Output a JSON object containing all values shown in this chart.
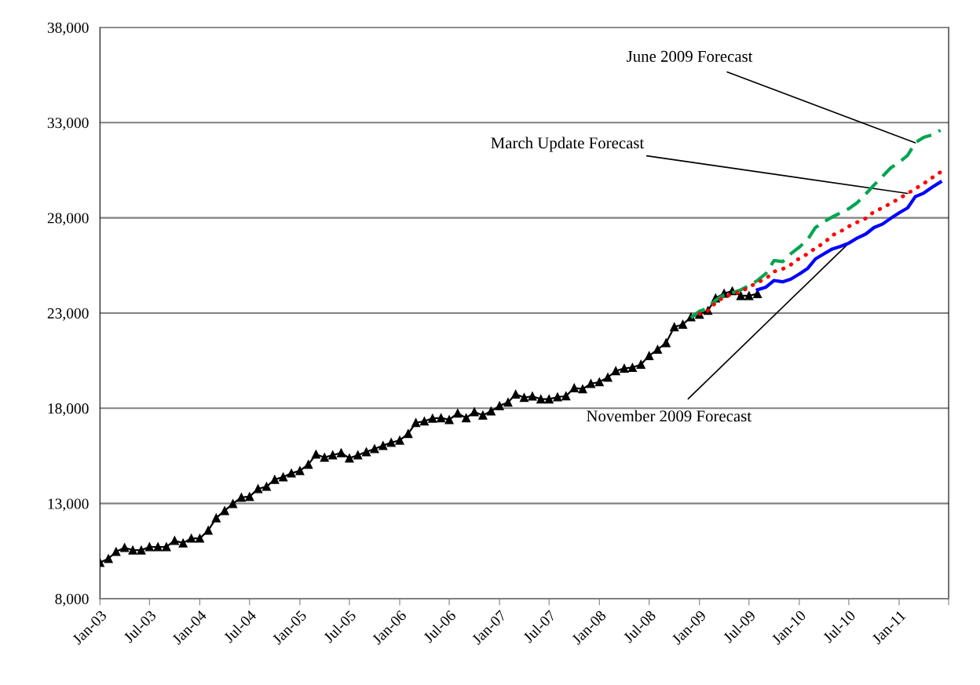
{
  "chart_data": {
    "type": "line",
    "xlim": [
      "2003-01",
      "2011-07"
    ],
    "xticks": [
      {
        "value": "2003-01",
        "label": "Jan-03"
      },
      {
        "value": "2003-07",
        "label": "Jul-03"
      },
      {
        "value": "2004-01",
        "label": "Jan-04"
      },
      {
        "value": "2004-07",
        "label": "Jul-04"
      },
      {
        "value": "2005-01",
        "label": "Jan-05"
      },
      {
        "value": "2005-07",
        "label": "Jul-05"
      },
      {
        "value": "2006-01",
        "label": "Jan-06"
      },
      {
        "value": "2006-07",
        "label": "Jul-06"
      },
      {
        "value": "2007-01",
        "label": "Jan-07"
      },
      {
        "value": "2007-07",
        "label": "Jul-07"
      },
      {
        "value": "2008-01",
        "label": "Jan-08"
      },
      {
        "value": "2008-07",
        "label": "Jul-08"
      },
      {
        "value": "2009-01",
        "label": "Jan-09"
      },
      {
        "value": "2009-07",
        "label": "Jul-09"
      },
      {
        "value": "2010-01",
        "label": "Jan-10"
      },
      {
        "value": "2010-07",
        "label": "Jul-10"
      },
      {
        "value": "2011-01",
        "label": "Jan-11"
      },
      {
        "value": "2011-07",
        "label": null
      }
    ],
    "ylim": [
      8000,
      38000
    ],
    "yticks": [
      {
        "value": 8000,
        "label": "8,000"
      },
      {
        "value": 13000,
        "label": "13,000"
      },
      {
        "value": 18000,
        "label": "18,000"
      },
      {
        "value": 23000,
        "label": "23,000"
      },
      {
        "value": 28000,
        "label": "28,000"
      },
      {
        "value": 33000,
        "label": "33,000"
      },
      {
        "value": 38000,
        "label": "38,000"
      }
    ],
    "grid": "y",
    "annotations": [
      {
        "text": "June 2009 Forecast",
        "x": "2011-03",
        "y": 31940
      },
      {
        "text": "March Update Forecast",
        "x": "2011-02",
        "y": 29280
      },
      {
        "text": "November 2009 Forecast",
        "x": "2010-07",
        "y": 26670
      }
    ],
    "series": [
      {
        "color": "#000000",
        "marker": "triangle",
        "line_style": "solid",
        "x": [
          "2003-01",
          "2003-02",
          "2003-03",
          "2003-04",
          "2003-05",
          "2003-06",
          "2003-07",
          "2003-08",
          "2003-09",
          "2003-10",
          "2003-11",
          "2003-12",
          "2004-01",
          "2004-02",
          "2004-03",
          "2004-04",
          "2004-05",
          "2004-06",
          "2004-07",
          "2004-08",
          "2004-09",
          "2004-10",
          "2004-11",
          "2004-12",
          "2005-01",
          "2005-02",
          "2005-03",
          "2005-04",
          "2005-05",
          "2005-06",
          "2005-07",
          "2005-08",
          "2005-09",
          "2005-10",
          "2005-11",
          "2005-12",
          "2006-01",
          "2006-02",
          "2006-03",
          "2006-04",
          "2006-05",
          "2006-06",
          "2006-07",
          "2006-08",
          "2006-09",
          "2006-10",
          "2006-11",
          "2006-12",
          "2007-01",
          "2007-02",
          "2007-03",
          "2007-04",
          "2007-05",
          "2007-06",
          "2007-07",
          "2007-08",
          "2007-09",
          "2007-10",
          "2007-11",
          "2007-12",
          "2008-01",
          "2008-02",
          "2008-03",
          "2008-04",
          "2008-05",
          "2008-06",
          "2008-07",
          "2008-08",
          "2008-09",
          "2008-10",
          "2008-11",
          "2008-12",
          "2009-01",
          "2009-02",
          "2009-03",
          "2009-04",
          "2009-05",
          "2009-06",
          "2009-07",
          "2009-08"
        ],
        "values": [
          9900,
          10100,
          10470,
          10680,
          10550,
          10550,
          10720,
          10720,
          10720,
          11050,
          10920,
          11170,
          11170,
          11590,
          12240,
          12620,
          12990,
          13320,
          13360,
          13770,
          13890,
          14260,
          14390,
          14590,
          14720,
          15050,
          15580,
          15420,
          15540,
          15660,
          15380,
          15540,
          15710,
          15870,
          16040,
          16200,
          16320,
          16670,
          17240,
          17320,
          17470,
          17490,
          17400,
          17740,
          17490,
          17810,
          17630,
          17850,
          18130,
          18310,
          18740,
          18560,
          18630,
          18480,
          18480,
          18590,
          18640,
          19070,
          19010,
          19290,
          19380,
          19620,
          19960,
          20100,
          20140,
          20300,
          20760,
          21090,
          21440,
          22270,
          22400,
          22790,
          22930,
          23130,
          23780,
          24030,
          24160,
          23910,
          23910,
          24010
        ]
      },
      {
        "color": "#00a550",
        "marker": "none",
        "line_style": "dashed",
        "x": [
          "2008-12",
          "2009-01",
          "2009-02",
          "2009-03",
          "2009-04",
          "2009-05",
          "2009-06",
          "2009-07",
          "2009-08",
          "2009-09",
          "2009-10",
          "2009-11",
          "2009-12",
          "2010-01",
          "2010-02",
          "2010-03",
          "2010-04",
          "2010-05",
          "2010-06",
          "2010-07",
          "2010-08",
          "2010-09",
          "2010-10",
          "2010-11",
          "2010-12",
          "2011-01",
          "2011-02",
          "2011-03",
          "2011-04",
          "2011-05",
          "2011-06"
        ],
        "values": [
          22750,
          23090,
          23260,
          23680,
          23950,
          24060,
          24220,
          24440,
          24710,
          25080,
          25760,
          25700,
          26110,
          26460,
          26870,
          27490,
          27790,
          28040,
          28260,
          28480,
          28800,
          29250,
          29720,
          30170,
          30620,
          30910,
          31280,
          31940,
          32230,
          32350,
          32600
        ]
      },
      {
        "color": "#ff0000",
        "marker": "none",
        "line_style": "dotted",
        "x": [
          "2009-01",
          "2009-02",
          "2009-03",
          "2009-04",
          "2009-05",
          "2009-06",
          "2009-07",
          "2009-08",
          "2009-09",
          "2009-10",
          "2009-11",
          "2009-12",
          "2010-01",
          "2010-02",
          "2010-03",
          "2010-04",
          "2010-05",
          "2010-06",
          "2010-07",
          "2010-08",
          "2010-09",
          "2010-10",
          "2010-11",
          "2010-12",
          "2011-01",
          "2011-02",
          "2011-03",
          "2011-04",
          "2011-05",
          "2011-06"
        ],
        "values": [
          22960,
          23130,
          23540,
          23850,
          23990,
          24120,
          24360,
          24610,
          24810,
          25180,
          25310,
          25540,
          25870,
          26110,
          26420,
          26670,
          27080,
          27290,
          27550,
          27770,
          27970,
          28320,
          28520,
          28760,
          29010,
          29280,
          29530,
          29800,
          30100,
          30400
        ]
      },
      {
        "color": "#0000ff",
        "marker": "none",
        "line_style": "solid",
        "x": [
          "2009-08",
          "2009-09",
          "2009-10",
          "2009-11",
          "2009-12",
          "2010-01",
          "2010-02",
          "2010-03",
          "2010-04",
          "2010-05",
          "2010-06",
          "2010-07",
          "2010-08",
          "2010-09",
          "2010-10",
          "2010-11",
          "2010-12",
          "2011-01",
          "2011-02",
          "2011-03",
          "2011-04",
          "2011-05",
          "2011-06"
        ],
        "values": [
          24220,
          24360,
          24710,
          24640,
          24780,
          25050,
          25350,
          25840,
          26110,
          26360,
          26500,
          26670,
          26940,
          27150,
          27490,
          27670,
          27970,
          28260,
          28520,
          29110,
          29300,
          29600,
          29880
        ]
      }
    ]
  }
}
